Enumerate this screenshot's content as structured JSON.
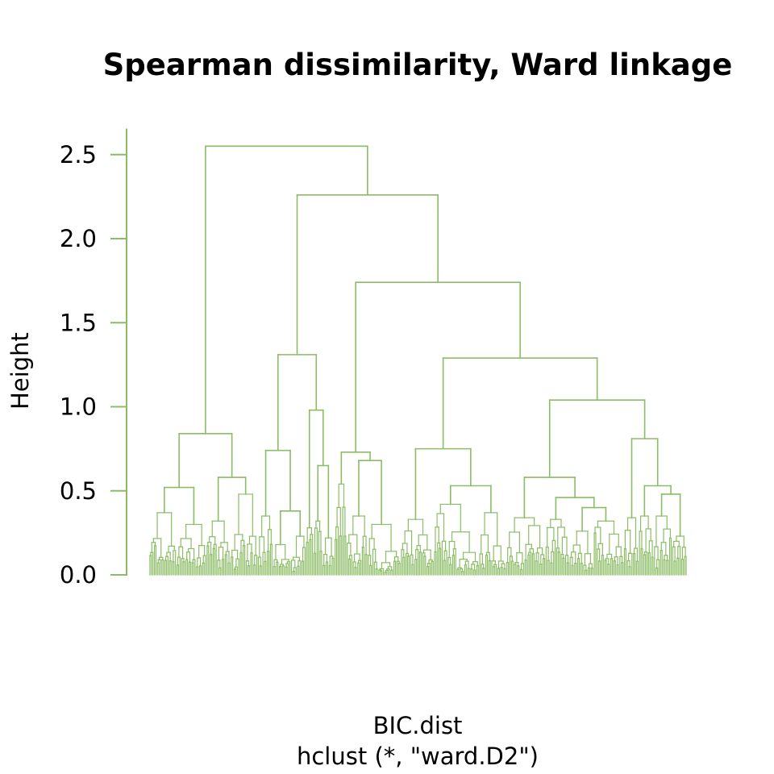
{
  "chart_data": {
    "type": "dendrogram",
    "title": "Spearman dissimilarity, Ward linkage",
    "xlabel": "BIC.dist",
    "sub": "hclust (*, \"ward.D2\")",
    "ylabel": "Height",
    "ylim": [
      0,
      2.65
    ],
    "yticks": [
      0.0,
      0.5,
      1.0,
      1.5,
      2.0,
      2.5
    ],
    "ytick_labels": [
      "0.0",
      "0.5",
      "1.0",
      "1.5",
      "2.0",
      "2.5"
    ],
    "color": "#8cbd66",
    "tree": {
      "h": 2.55,
      "children": [
        {
          "h": 0.84,
          "children": [
            {
              "h": 0.52,
              "leaves": 38,
              "children": [
                {
                  "h": 0.37,
                  "leaves": 18
                },
                {
                  "h": 0.3,
                  "leaves": 20
                }
              ]
            },
            {
              "h": 0.58,
              "leaves": 34,
              "children": [
                {
                  "h": 0.32,
                  "leaves": 16
                },
                {
                  "h": 0.48,
                  "leaves": 18
                }
              ]
            }
          ]
        },
        {
          "h": 2.26,
          "children": [
            {
              "h": 1.31,
              "children": [
                {
                  "h": 0.74,
                  "children": [
                    {
                      "h": 0.35,
                      "leaves": 10
                    },
                    {
                      "h": 0.38,
                      "leaves": 22,
                      "children": [
                        {
                          "h": 0.18,
                          "leaves": 12
                        },
                        {
                          "h": 0.23,
                          "leaves": 10
                        }
                      ]
                    }
                  ]
                },
                {
                  "h": 0.98,
                  "children": [
                    {
                      "h": 0.28,
                      "leaves": 5
                    },
                    {
                      "h": 0.65,
                      "leaves": 14,
                      "children": [
                        {
                          "h": 0.32,
                          "leaves": 6
                        },
                        {
                          "h": 0.22,
                          "leaves": 8
                        }
                      ]
                    }
                  ]
                }
              ]
            },
            {
              "h": 1.74,
              "children": [
                {
                  "h": 0.73,
                  "children": [
                    {
                      "h": 0.54,
                      "leaves": 8
                    },
                    {
                      "h": 0.68,
                      "leaves": 36,
                      "children": [
                        {
                          "h": 0.35,
                          "leaves": 14
                        },
                        {
                          "h": 0.3,
                          "leaves": 22
                        }
                      ]
                    }
                  ]
                },
                {
                  "h": 1.29,
                  "children": [
                    {
                      "h": 0.75,
                      "children": [
                        {
                          "h": 0.33,
                          "leaves": 22
                        },
                        {
                          "h": 0.53,
                          "leaves": 48,
                          "children": [
                            {
                              "h": 0.42,
                              "leaves": 30
                            },
                            {
                              "h": 0.37,
                              "leaves": 18
                            }
                          ]
                        }
                      ]
                    },
                    {
                      "h": 1.04,
                      "children": [
                        {
                          "h": 0.58,
                          "children": [
                            {
                              "h": 0.34,
                              "leaves": 26
                            },
                            {
                              "h": 0.46,
                              "leaves": 52,
                              "children": [
                                {
                                  "h": 0.33,
                                  "leaves": 16
                                },
                                {
                                  "h": 0.4,
                                  "leaves": 36,
                                  "children": [
                                    {
                                      "h": 0.26,
                                      "leaves": 16
                                    },
                                    {
                                      "h": 0.32,
                                      "leaves": 20
                                    }
                                  ]
                                }
                              ]
                            }
                          ]
                        },
                        {
                          "h": 0.81,
                          "children": [
                            {
                              "h": 0.34,
                              "leaves": 10
                            },
                            {
                              "h": 0.53,
                              "leaves": 32,
                              "children": [
                                {
                                  "h": 0.35,
                                  "leaves": 10
                                },
                                {
                                  "h": 0.48,
                                  "leaves": 22,
                                  "children": [
                                    {
                                      "h": 0.35,
                                      "leaves": 12
                                    },
                                    {
                                      "h": 0.23,
                                      "leaves": 10
                                    }
                                  ]
                                }
                              ]
                            }
                          ]
                        }
                      ]
                    }
                  ]
                }
              ]
            }
          ]
        }
      ]
    }
  }
}
